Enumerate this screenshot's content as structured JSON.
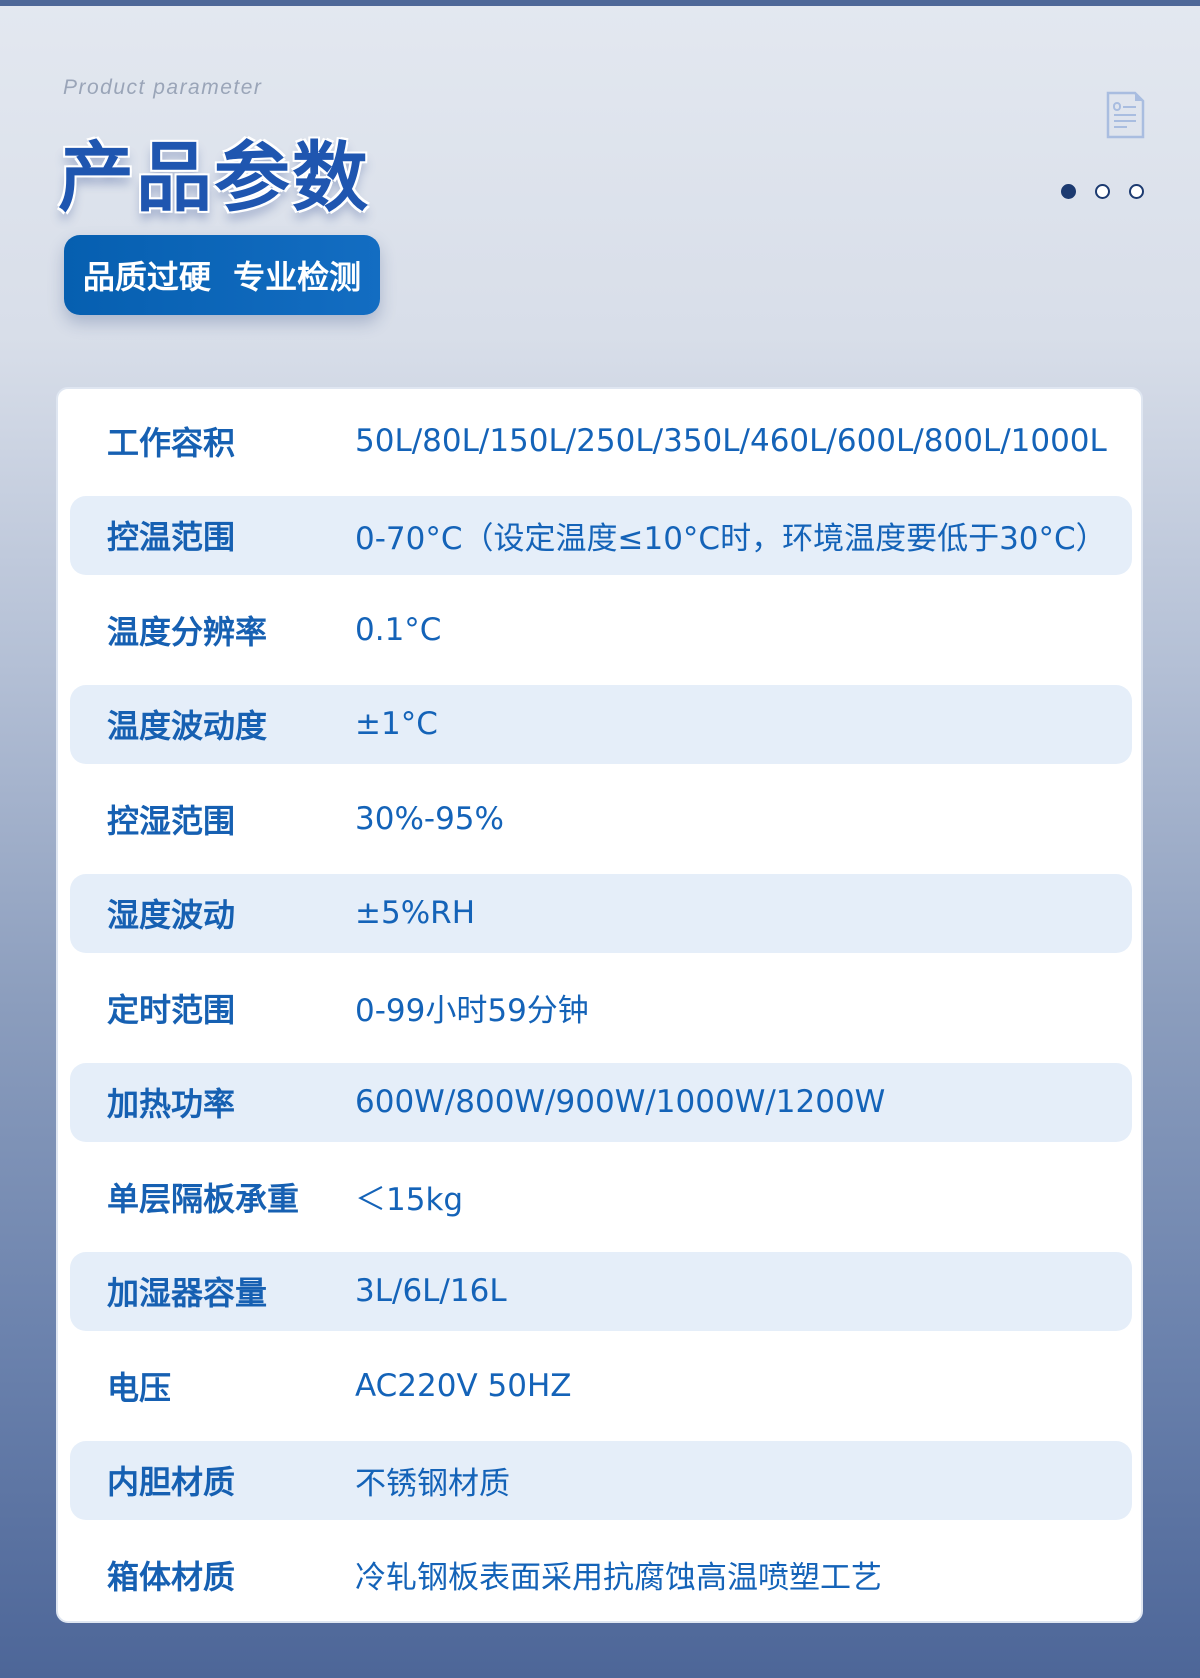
{
  "header": {
    "subtitle": "Product parameter",
    "title": "产品参数",
    "badge": "品质过硬  专业检测",
    "icon": "document-icon",
    "pagination": {
      "total": 3,
      "active": 1
    }
  },
  "colors": {
    "accent": "#1660b2",
    "badge": "#0b65b8",
    "stripe": "#e5eef9",
    "top_bar": "#4e6898"
  },
  "params": [
    {
      "label": "工作容积",
      "value": "50L/80L/150L/250L/350L/460L/600L/800L/1000L"
    },
    {
      "label": "控温范围",
      "value": "0-70°C（设定温度≤10°C时，环境温度要低于30°C）"
    },
    {
      "label": "温度分辨率",
      "value": "0.1°C"
    },
    {
      "label": "温度波动度",
      "value": "±1°C"
    },
    {
      "label": "控湿范围",
      "value": "30%-95%"
    },
    {
      "label": "湿度波动",
      "value": "±5%RH"
    },
    {
      "label": "定时范围",
      "value": "0-99小时59分钟"
    },
    {
      "label": "加热功率",
      "value": "600W/800W/900W/1000W/1200W"
    },
    {
      "label": "单层隔板承重",
      "value": "＜15kg"
    },
    {
      "label": "加湿器容量",
      "value": "3L/6L/16L"
    },
    {
      "label": "电压",
      "value": "AC220V 50HZ"
    },
    {
      "label": "内胆材质",
      "value": "不锈钢材质"
    },
    {
      "label": "箱体材质",
      "value": "冷轧钢板表面采用抗腐蚀高温喷塑工艺"
    }
  ]
}
